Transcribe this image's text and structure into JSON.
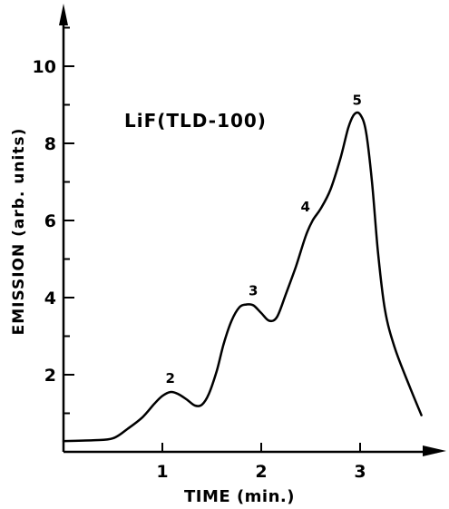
{
  "chart_data": {
    "type": "line",
    "title": "",
    "annotation": "LiF(TLD-100)",
    "xlabel": "TIME (min.)",
    "ylabel": "EMISSION (arb. units)",
    "xlim": [
      0,
      3.75
    ],
    "ylim": [
      0,
      11.2
    ],
    "x_ticks": [
      1,
      2,
      3
    ],
    "x_tick_labels": [
      "1",
      "2",
      "3"
    ],
    "y_ticks": [
      2,
      4,
      6,
      8,
      10
    ],
    "y_tick_labels": [
      "2",
      "4",
      "6",
      "8",
      "10"
    ],
    "grid": false,
    "series": [
      {
        "x": [
          0,
          0.3,
          0.5,
          0.65,
          0.8,
          0.92,
          1.0,
          1.08,
          1.16,
          1.25,
          1.33,
          1.4,
          1.47,
          1.55,
          1.62,
          1.7,
          1.78,
          1.85,
          1.92,
          2.0,
          2.08,
          2.16,
          2.25,
          2.35,
          2.45,
          2.52,
          2.6,
          2.7,
          2.8,
          2.88,
          2.94,
          3.0,
          3.06,
          3.12,
          3.18,
          3.25,
          3.35,
          3.5,
          3.62
        ],
        "y": [
          0.28,
          0.3,
          0.35,
          0.6,
          0.9,
          1.25,
          1.45,
          1.55,
          1.5,
          1.35,
          1.2,
          1.22,
          1.5,
          2.1,
          2.8,
          3.4,
          3.75,
          3.82,
          3.8,
          3.6,
          3.4,
          3.5,
          4.1,
          4.8,
          5.6,
          6.0,
          6.3,
          6.8,
          7.6,
          8.4,
          8.75,
          8.75,
          8.3,
          7.0,
          5.2,
          3.7,
          2.7,
          1.7,
          0.95
        ]
      }
    ],
    "peak_labels": [
      {
        "label": "2",
        "x": 1.08,
        "y": 1.55
      },
      {
        "label": "3",
        "x": 1.92,
        "y": 3.82
      },
      {
        "label": "4",
        "x": 2.52,
        "y": 6.0
      },
      {
        "label": "5",
        "x": 2.97,
        "y": 8.77
      }
    ]
  }
}
